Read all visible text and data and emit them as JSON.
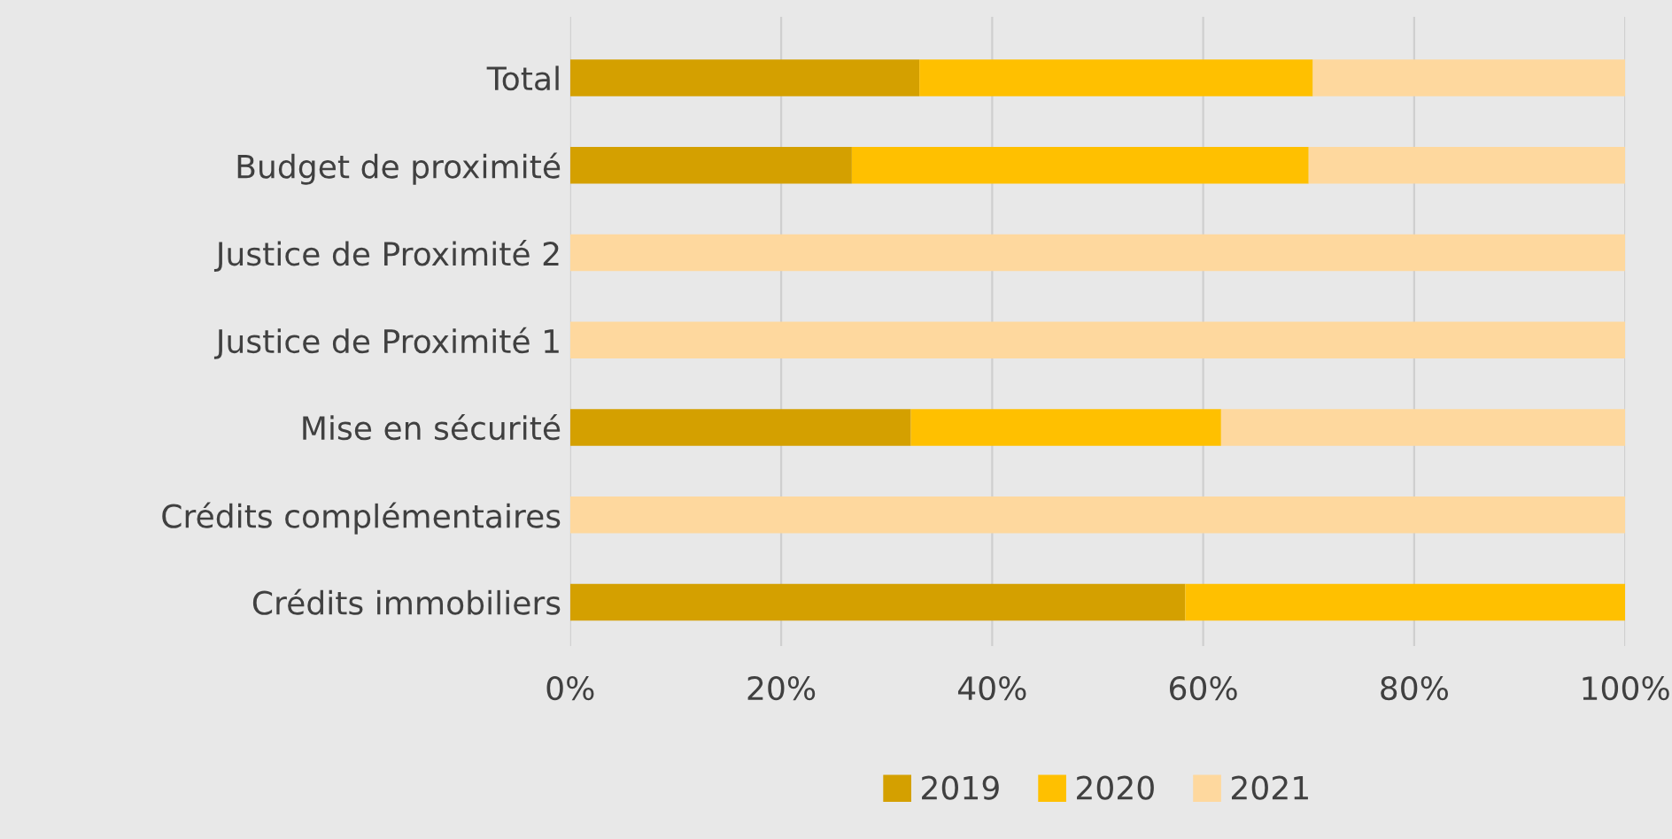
{
  "chart_data": {
    "type": "bar",
    "orientation": "horizontal",
    "stacked": true,
    "categories": [
      "Total",
      "Budget de proximité",
      "Justice de Proximité 2",
      "Justice de Proximité 1",
      "Mise en sécurité",
      "Crédits complémentaires",
      "Crédits immobiliers"
    ],
    "series": [
      {
        "name": "2019",
        "color": "#d4a000",
        "values": [
          33.1,
          26.7,
          0,
          0,
          32.3,
          0,
          58.3
        ]
      },
      {
        "name": "2020",
        "color": "#ffc000",
        "values": [
          37.3,
          43.3,
          0,
          0,
          29.4,
          0,
          41.7
        ]
      },
      {
        "name": "2021",
        "color": "#fed89e",
        "values": [
          29.6,
          30.0,
          100,
          100,
          38.3,
          100,
          0
        ]
      }
    ],
    "xlim": [
      0,
      100
    ],
    "xticks": [
      {
        "value": 0,
        "label": "0%"
      },
      {
        "value": 20,
        "label": "20%"
      },
      {
        "value": 40,
        "label": "40%"
      },
      {
        "value": 60,
        "label": "60%"
      },
      {
        "value": 80,
        "label": "80%"
      },
      {
        "value": 100,
        "label": "100%"
      }
    ],
    "grid": "x",
    "legend": "bottom"
  }
}
